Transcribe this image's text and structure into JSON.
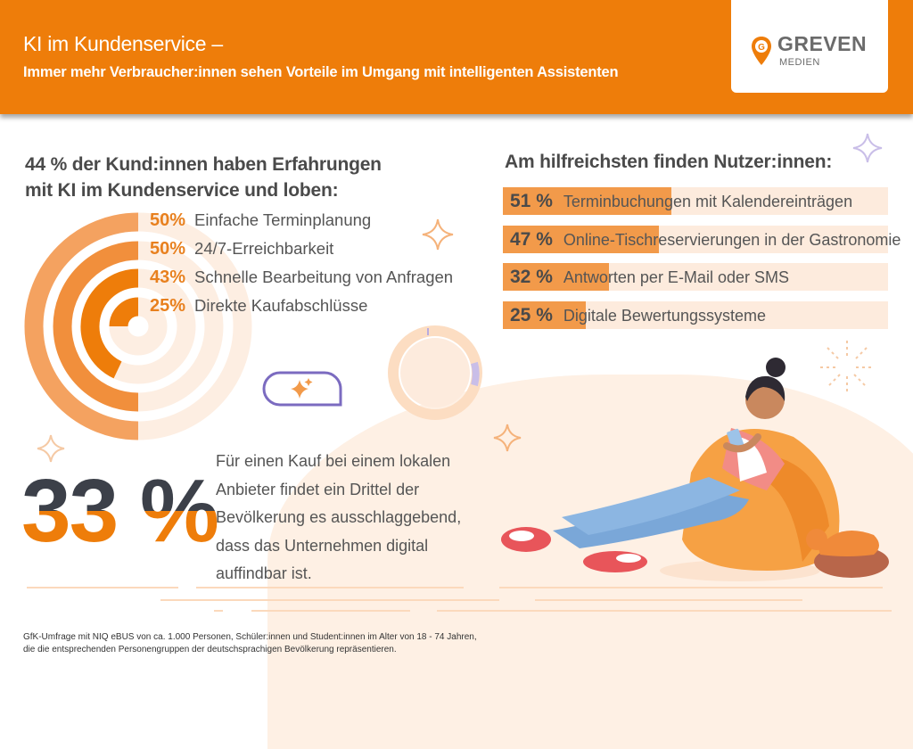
{
  "header": {
    "title": "KI im Kundenservice –",
    "subtitle": "Immer mehr Verbraucher:innen sehen Vorteile im Umgang mit intelligenten Assistenten",
    "logo_text": "GREVEN",
    "logo_subtext": "MEDIEN",
    "logo_letter": "G"
  },
  "left_section": {
    "heading_line1": "44 % der Kund:innen haben Erfahrungen",
    "heading_line2": "mit KI im Kundenservice und loben:"
  },
  "right_section": {
    "heading": "Am hilfreichsten finden Nutzer:innen:"
  },
  "stat": {
    "value": "33 %",
    "description": "Für einen Kauf bei einem lokalen Anbieter findet ein Drittel der Bevölkerung es ausschlaggebend, dass das Unternehmen digital auffindbar ist."
  },
  "footnote": {
    "line1": "GfK-Umfrage mit NIQ eBUS von ca. 1.000 Personen, Schüler:innen und Student:innen im Alter von 18 - 74 Jahren,",
    "line2": "die die entsprechenden Personengruppen der deutschsprachigen Bevölkerung repräsentieren."
  },
  "colors": {
    "brand_orange": "#EE7D0A",
    "bar_fill": "#F29A4A",
    "bar_track": "#FDEBDD",
    "dark_text": "#4a4a4a",
    "accent_purple": "#7B6BC0"
  },
  "chart_data": [
    {
      "type": "radial-bar",
      "unit": "%",
      "categories": [
        "Einfache Terminplanung",
        "24/7-Erreichbarkeit",
        "Schnelle Bearbeitung von Anfragen",
        "Direkte Kaufabschlüsse"
      ],
      "values": [
        50,
        50,
        43,
        25
      ],
      "value_labels": [
        "50%",
        "50%",
        "43%",
        "25%"
      ],
      "ylim": [
        0,
        100
      ]
    },
    {
      "type": "bar",
      "orientation": "horizontal",
      "unit": "%",
      "categories": [
        "Terminbuchungen mit Kalendereinträgen",
        "Online-Tischreservierungen in der Gastronomie",
        "Antworten per E-Mail oder SMS",
        "Digitale Bewertungssysteme"
      ],
      "values": [
        51,
        47,
        32,
        25
      ],
      "value_labels": [
        "51 %",
        "47 %",
        "32 %",
        "25 %"
      ],
      "xlim": [
        0,
        100
      ]
    }
  ]
}
